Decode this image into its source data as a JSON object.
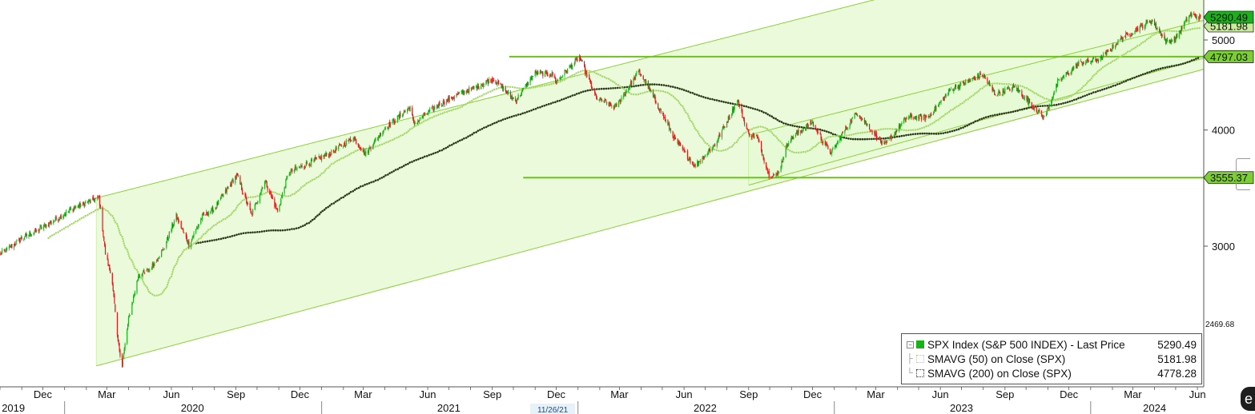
{
  "chart_data": {
    "type": "candlestick",
    "title": "",
    "xlabel": "",
    "ylabel": "",
    "ylim": [
      2469.68,
      5500
    ],
    "x_range": [
      "2019-10-01",
      "2024-06-10"
    ],
    "y_ticks": [
      3000,
      4000,
      5000
    ],
    "y_scale": "log",
    "y_min_label": "2469.68",
    "x_month_labels": [
      {
        "label": "Dec",
        "date": "2019-12-01"
      },
      {
        "label": "Mar",
        "date": "2020-03-01"
      },
      {
        "label": "Jun",
        "date": "2020-06-01"
      },
      {
        "label": "Sep",
        "date": "2020-09-01"
      },
      {
        "label": "Dec",
        "date": "2020-12-01"
      },
      {
        "label": "Mar",
        "date": "2021-03-01"
      },
      {
        "label": "Jun",
        "date": "2021-06-01"
      },
      {
        "label": "Sep",
        "date": "2021-09-01"
      },
      {
        "label": "Dec",
        "date": "2021-12-01"
      },
      {
        "label": "Mar",
        "date": "2022-03-01"
      },
      {
        "label": "Jun",
        "date": "2022-06-01"
      },
      {
        "label": "Sep",
        "date": "2022-09-01"
      },
      {
        "label": "Dec",
        "date": "2022-12-01"
      },
      {
        "label": "Mar",
        "date": "2023-03-01"
      },
      {
        "label": "Jun",
        "date": "2023-06-01"
      },
      {
        "label": "Sep",
        "date": "2023-09-01"
      },
      {
        "label": "Dec",
        "date": "2023-12-01"
      },
      {
        "label": "Mar",
        "date": "2024-03-01"
      },
      {
        "label": "Jun",
        "date": "2024-06-01"
      }
    ],
    "x_year_labels": [
      {
        "label": "2019",
        "date": "2019-10-20"
      },
      {
        "label": "2020",
        "date": "2020-07-01"
      },
      {
        "label": "2021",
        "date": "2021-07-01"
      },
      {
        "label": "2022",
        "date": "2022-07-01"
      },
      {
        "label": "2023",
        "date": "2023-07-01"
      },
      {
        "label": "2024",
        "date": "2024-04-01"
      }
    ],
    "x_cursor_label": {
      "label": "11/26/21",
      "date": "2021-11-26"
    },
    "price_key_points": [
      [
        "2019-10-01",
        2940
      ],
      [
        "2019-10-15",
        2990
      ],
      [
        "2019-11-01",
        3060
      ],
      [
        "2019-11-20",
        3110
      ],
      [
        "2019-12-15",
        3190
      ],
      [
        "2020-01-15",
        3300
      ],
      [
        "2020-02-19",
        3386
      ],
      [
        "2020-02-28",
        2950
      ],
      [
        "2020-03-09",
        2750
      ],
      [
        "2020-03-16",
        2390
      ],
      [
        "2020-03-23",
        2237
      ],
      [
        "2020-04-01",
        2500
      ],
      [
        "2020-04-15",
        2790
      ],
      [
        "2020-05-01",
        2830
      ],
      [
        "2020-05-20",
        2970
      ],
      [
        "2020-06-08",
        3232
      ],
      [
        "2020-06-26",
        3010
      ],
      [
        "2020-07-15",
        3230
      ],
      [
        "2020-08-01",
        3290
      ],
      [
        "2020-09-02",
        3580
      ],
      [
        "2020-09-23",
        3240
      ],
      [
        "2020-10-12",
        3530
      ],
      [
        "2020-10-30",
        3270
      ],
      [
        "2020-11-15",
        3600
      ],
      [
        "2020-12-15",
        3690
      ],
      [
        "2021-01-15",
        3780
      ],
      [
        "2021-02-15",
        3930
      ],
      [
        "2021-03-04",
        3770
      ],
      [
        "2021-04-01",
        4020
      ],
      [
        "2021-05-07",
        4230
      ],
      [
        "2021-05-12",
        4060
      ],
      [
        "2021-06-15",
        4250
      ],
      [
        "2021-07-15",
        4370
      ],
      [
        "2021-08-15",
        4470
      ],
      [
        "2021-09-02",
        4540
      ],
      [
        "2021-10-04",
        4300
      ],
      [
        "2021-11-01",
        4610
      ],
      [
        "2021-11-26",
        4590
      ],
      [
        "2021-12-01",
        4510
      ],
      [
        "2022-01-03",
        4790
      ],
      [
        "2022-01-27",
        4330
      ],
      [
        "2022-02-23",
        4230
      ],
      [
        "2022-03-29",
        4630
      ],
      [
        "2022-04-15",
        4390
      ],
      [
        "2022-05-20",
        3900
      ],
      [
        "2022-06-16",
        3660
      ],
      [
        "2022-07-15",
        3860
      ],
      [
        "2022-08-16",
        4300
      ],
      [
        "2022-09-01",
        3960
      ],
      [
        "2022-09-13",
        3930
      ],
      [
        "2022-09-30",
        3580
      ],
      [
        "2022-10-12",
        3577
      ],
      [
        "2022-10-28",
        3900
      ],
      [
        "2022-11-30",
        4080
      ],
      [
        "2022-12-15",
        3900
      ],
      [
        "2022-12-28",
        3780
      ],
      [
        "2023-01-15",
        3990
      ],
      [
        "2023-02-02",
        4180
      ],
      [
        "2023-03-13",
        3850
      ],
      [
        "2023-04-15",
        4130
      ],
      [
        "2023-05-15",
        4130
      ],
      [
        "2023-06-15",
        4420
      ],
      [
        "2023-07-31",
        4590
      ],
      [
        "2023-08-18",
        4370
      ],
      [
        "2023-09-15",
        4450
      ],
      [
        "2023-10-27",
        4120
      ],
      [
        "2023-11-15",
        4500
      ],
      [
        "2023-12-15",
        4720
      ],
      [
        "2024-01-15",
        4770
      ],
      [
        "2024-02-15",
        5030
      ],
      [
        "2024-03-28",
        5250
      ],
      [
        "2024-04-19",
        4970
      ],
      [
        "2024-05-01",
        5020
      ],
      [
        "2024-05-21",
        5320
      ],
      [
        "2024-06-05",
        5290.49
      ]
    ],
    "series": [
      {
        "name": "SPX Index (S&P 500 INDEX) - Last Price",
        "value_label": "5290.49",
        "last": 5290.49,
        "color": "#19b319",
        "style": "candles"
      },
      {
        "name": "SMAVG (50)  on Close (SPX)",
        "value_label": "5181.98",
        "last": 5181.98,
        "color": "#a6d86a",
        "style": "dotted",
        "window": 50
      },
      {
        "name": "SMAVG (200)  on Close (SPX)",
        "value_label": "4778.28",
        "last": 4778.28,
        "color": "#2a3a1a",
        "style": "dotted",
        "window": 200
      }
    ],
    "horizontal_levels": [
      {
        "value": 4797.03,
        "label": "4797.03",
        "from": "2021-09-25"
      },
      {
        "value": 3555.37,
        "label": "3555.37",
        "from": "2021-10-15"
      }
    ],
    "channels": [
      {
        "start": [
          "2020-02-15",
          3380
        ],
        "end": [
          "2024-06-10",
          6800
        ],
        "lower_start": [
          "2020-02-15",
          2230
        ],
        "lower_end": [
          "2024-06-10",
          4650
        ]
      },
      {
        "start": [
          "2022-09-01",
          3950
        ],
        "end": [
          "2024-06-10",
          5250
        ],
        "lower_start": [
          "2022-09-01",
          3490
        ],
        "lower_end": [
          "2024-06-10",
          4780
        ]
      }
    ],
    "price_tags": [
      {
        "value": 5290.49,
        "label": "5290.49",
        "color": "#19b319"
      },
      {
        "value": 5181.98,
        "label": "5181.98",
        "color": "#c8ec9a"
      },
      {
        "value": 4797.03,
        "label": "4797.03",
        "color": "#7ccf33"
      },
      {
        "value": 3555.37,
        "label": "3555.37",
        "color": "#7ccf33"
      }
    ],
    "colors": {
      "up": "#19b319",
      "down": "#e0181b",
      "channel_fill": "#e6f9d4",
      "channel_line": "#8ad135",
      "level_line": "#6cc21a"
    },
    "legend_position": "bottom-right",
    "grid": false
  },
  "corner_icon": "e"
}
